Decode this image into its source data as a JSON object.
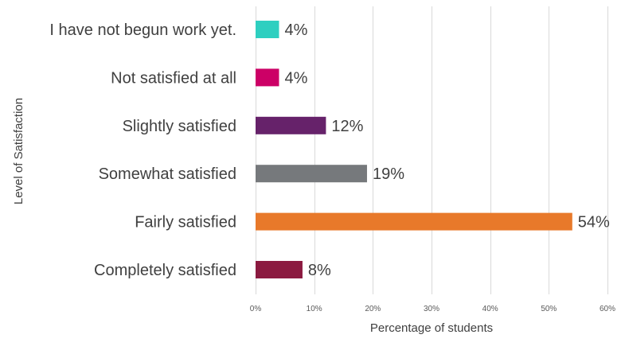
{
  "chart_data": {
    "type": "bar",
    "orientation": "horizontal",
    "categories": [
      "I have not begun work yet.",
      "Not satisfied at all",
      "Slightly satisfied",
      "Somewhat satisfied",
      "Fairly satisfied",
      "Completely satisfied"
    ],
    "values": [
      4,
      4,
      12,
      19,
      54,
      8
    ],
    "data_labels": [
      "4%",
      "4%",
      "12%",
      "19%",
      "54%",
      "8%"
    ],
    "colors": [
      "#2ecfc0",
      "#cc0066",
      "#66226a",
      "#76797c",
      "#e8792a",
      "#8b1a40"
    ],
    "xlabel": "Percentage of students",
    "ylabel": "Level of Satisfaction",
    "xlim": [
      0,
      60
    ],
    "xticks": [
      0,
      10,
      20,
      30,
      40,
      50,
      60
    ],
    "xtick_labels": [
      "0%",
      "10%",
      "20%",
      "30%",
      "40%",
      "50%",
      "60%"
    ],
    "grid": true,
    "legend": "none"
  }
}
